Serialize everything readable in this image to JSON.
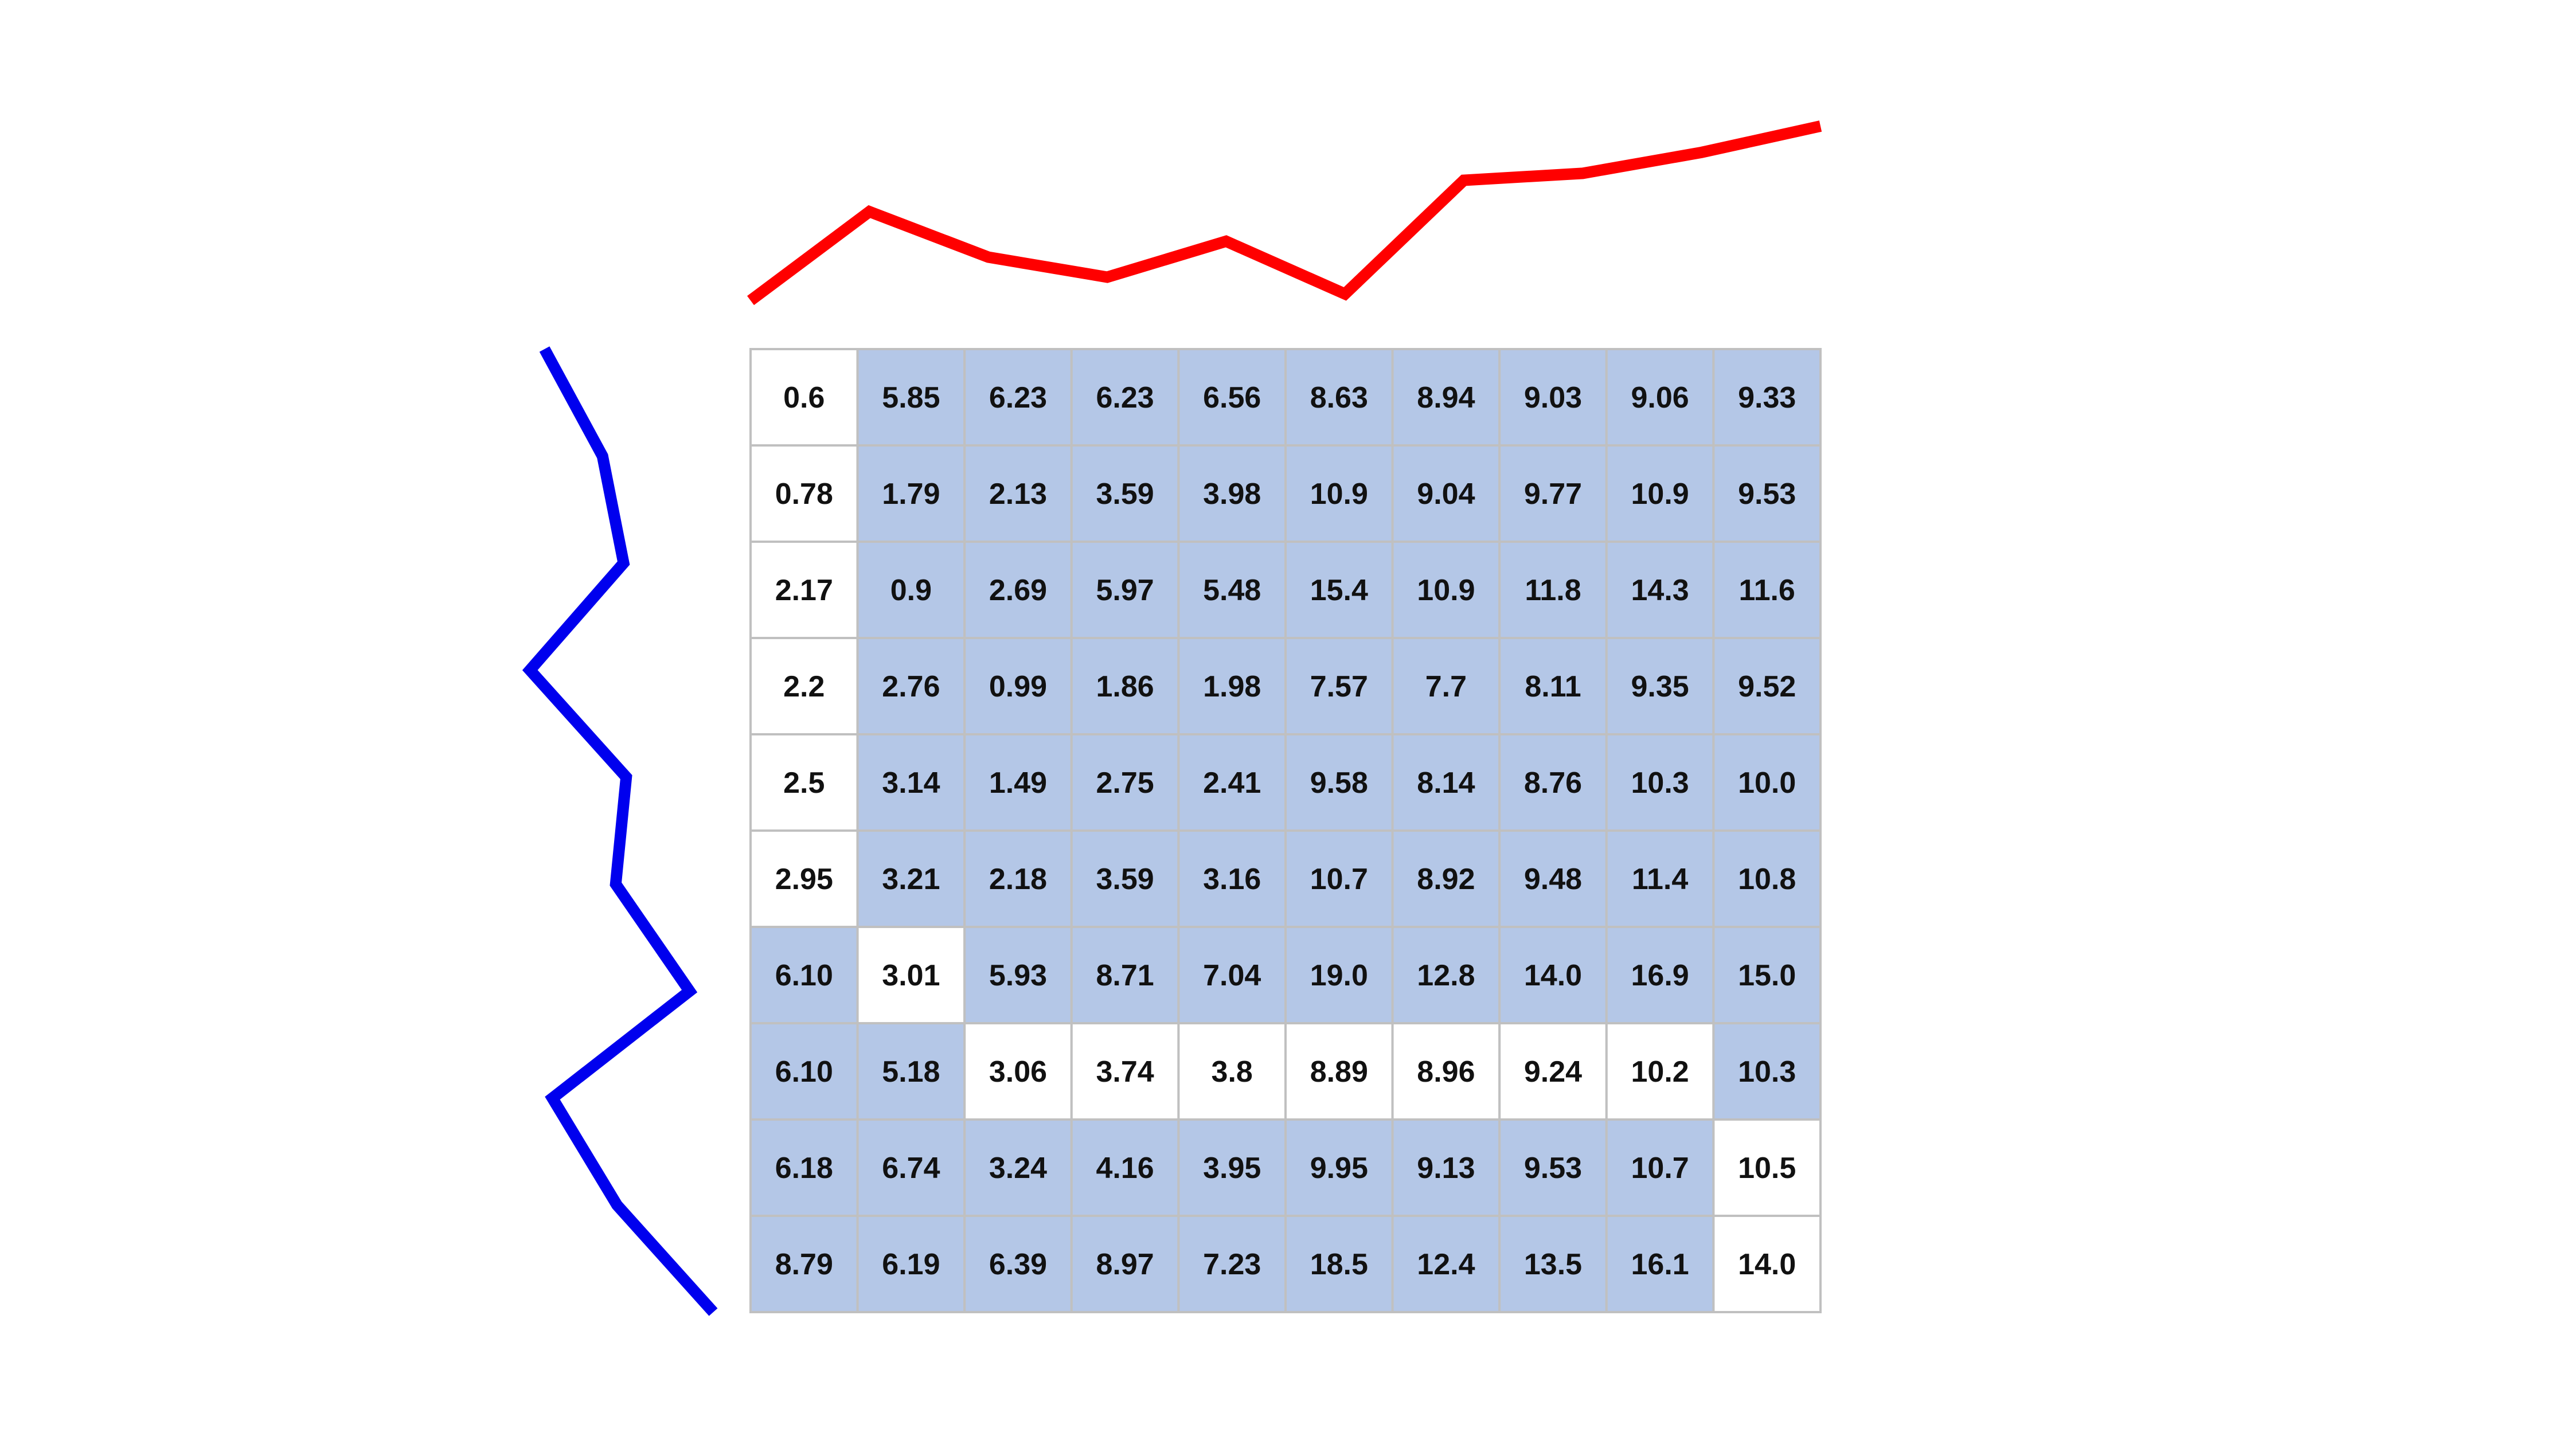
{
  "grid": {
    "rows": [
      [
        "0.6",
        "5.85",
        "6.23",
        "6.23",
        "6.56",
        "8.63",
        "8.94",
        "9.03",
        "9.06",
        "9.33"
      ],
      [
        "0.78",
        "1.79",
        "2.13",
        "3.59",
        "3.98",
        "10.9",
        "9.04",
        "9.77",
        "10.9",
        "9.53"
      ],
      [
        "2.17",
        "0.9",
        "2.69",
        "5.97",
        "5.48",
        "15.4",
        "10.9",
        "11.8",
        "14.3",
        "11.6"
      ],
      [
        "2.2",
        "2.76",
        "0.99",
        "1.86",
        "1.98",
        "7.57",
        "7.7",
        "8.11",
        "9.35",
        "9.52"
      ],
      [
        "2.5",
        "3.14",
        "1.49",
        "2.75",
        "2.41",
        "9.58",
        "8.14",
        "8.76",
        "10.3",
        "10.0"
      ],
      [
        "2.95",
        "3.21",
        "2.18",
        "3.59",
        "3.16",
        "10.7",
        "8.92",
        "9.48",
        "11.4",
        "10.8"
      ],
      [
        "6.10",
        "3.01",
        "5.93",
        "8.71",
        "7.04",
        "19.0",
        "12.8",
        "14.0",
        "16.9",
        "15.0"
      ],
      [
        "6.10",
        "5.18",
        "3.06",
        "3.74",
        "3.8",
        "8.89",
        "8.96",
        "9.24",
        "10.2",
        "10.3"
      ],
      [
        "6.18",
        "6.74",
        "3.24",
        "4.16",
        "3.95",
        "9.95",
        "9.13",
        "9.53",
        "10.7",
        "10.5"
      ],
      [
        "8.79",
        "6.19",
        "6.39",
        "8.97",
        "7.23",
        "18.5",
        "12.4",
        "13.5",
        "16.1",
        "14.0"
      ]
    ],
    "path_cells": [
      [
        0,
        0
      ],
      [
        1,
        0
      ],
      [
        2,
        0
      ],
      [
        3,
        0
      ],
      [
        4,
        0
      ],
      [
        5,
        0
      ],
      [
        6,
        1
      ],
      [
        7,
        2
      ],
      [
        7,
        3
      ],
      [
        7,
        4
      ],
      [
        7,
        5
      ],
      [
        7,
        6
      ],
      [
        7,
        7
      ],
      [
        7,
        8
      ],
      [
        8,
        9
      ],
      [
        9,
        9
      ]
    ],
    "colors": {
      "shaded": "#b4c7e7",
      "path": "#ffffff",
      "border": "#c0c0c0",
      "text": "#111111"
    }
  },
  "top_series": {
    "color": "#ff0000",
    "values": [
      0.6,
      5.85,
      3.16,
      1.98,
      4.1,
      0.99,
      7.7,
      8.11,
      9.35,
      10.9
    ]
  },
  "left_series": {
    "color": "#0000ee",
    "values": [
      0.6,
      2.8,
      3.6,
      0.05,
      3.7,
      3.3,
      6.1,
      0.9,
      3.35,
      7.0
    ]
  }
}
